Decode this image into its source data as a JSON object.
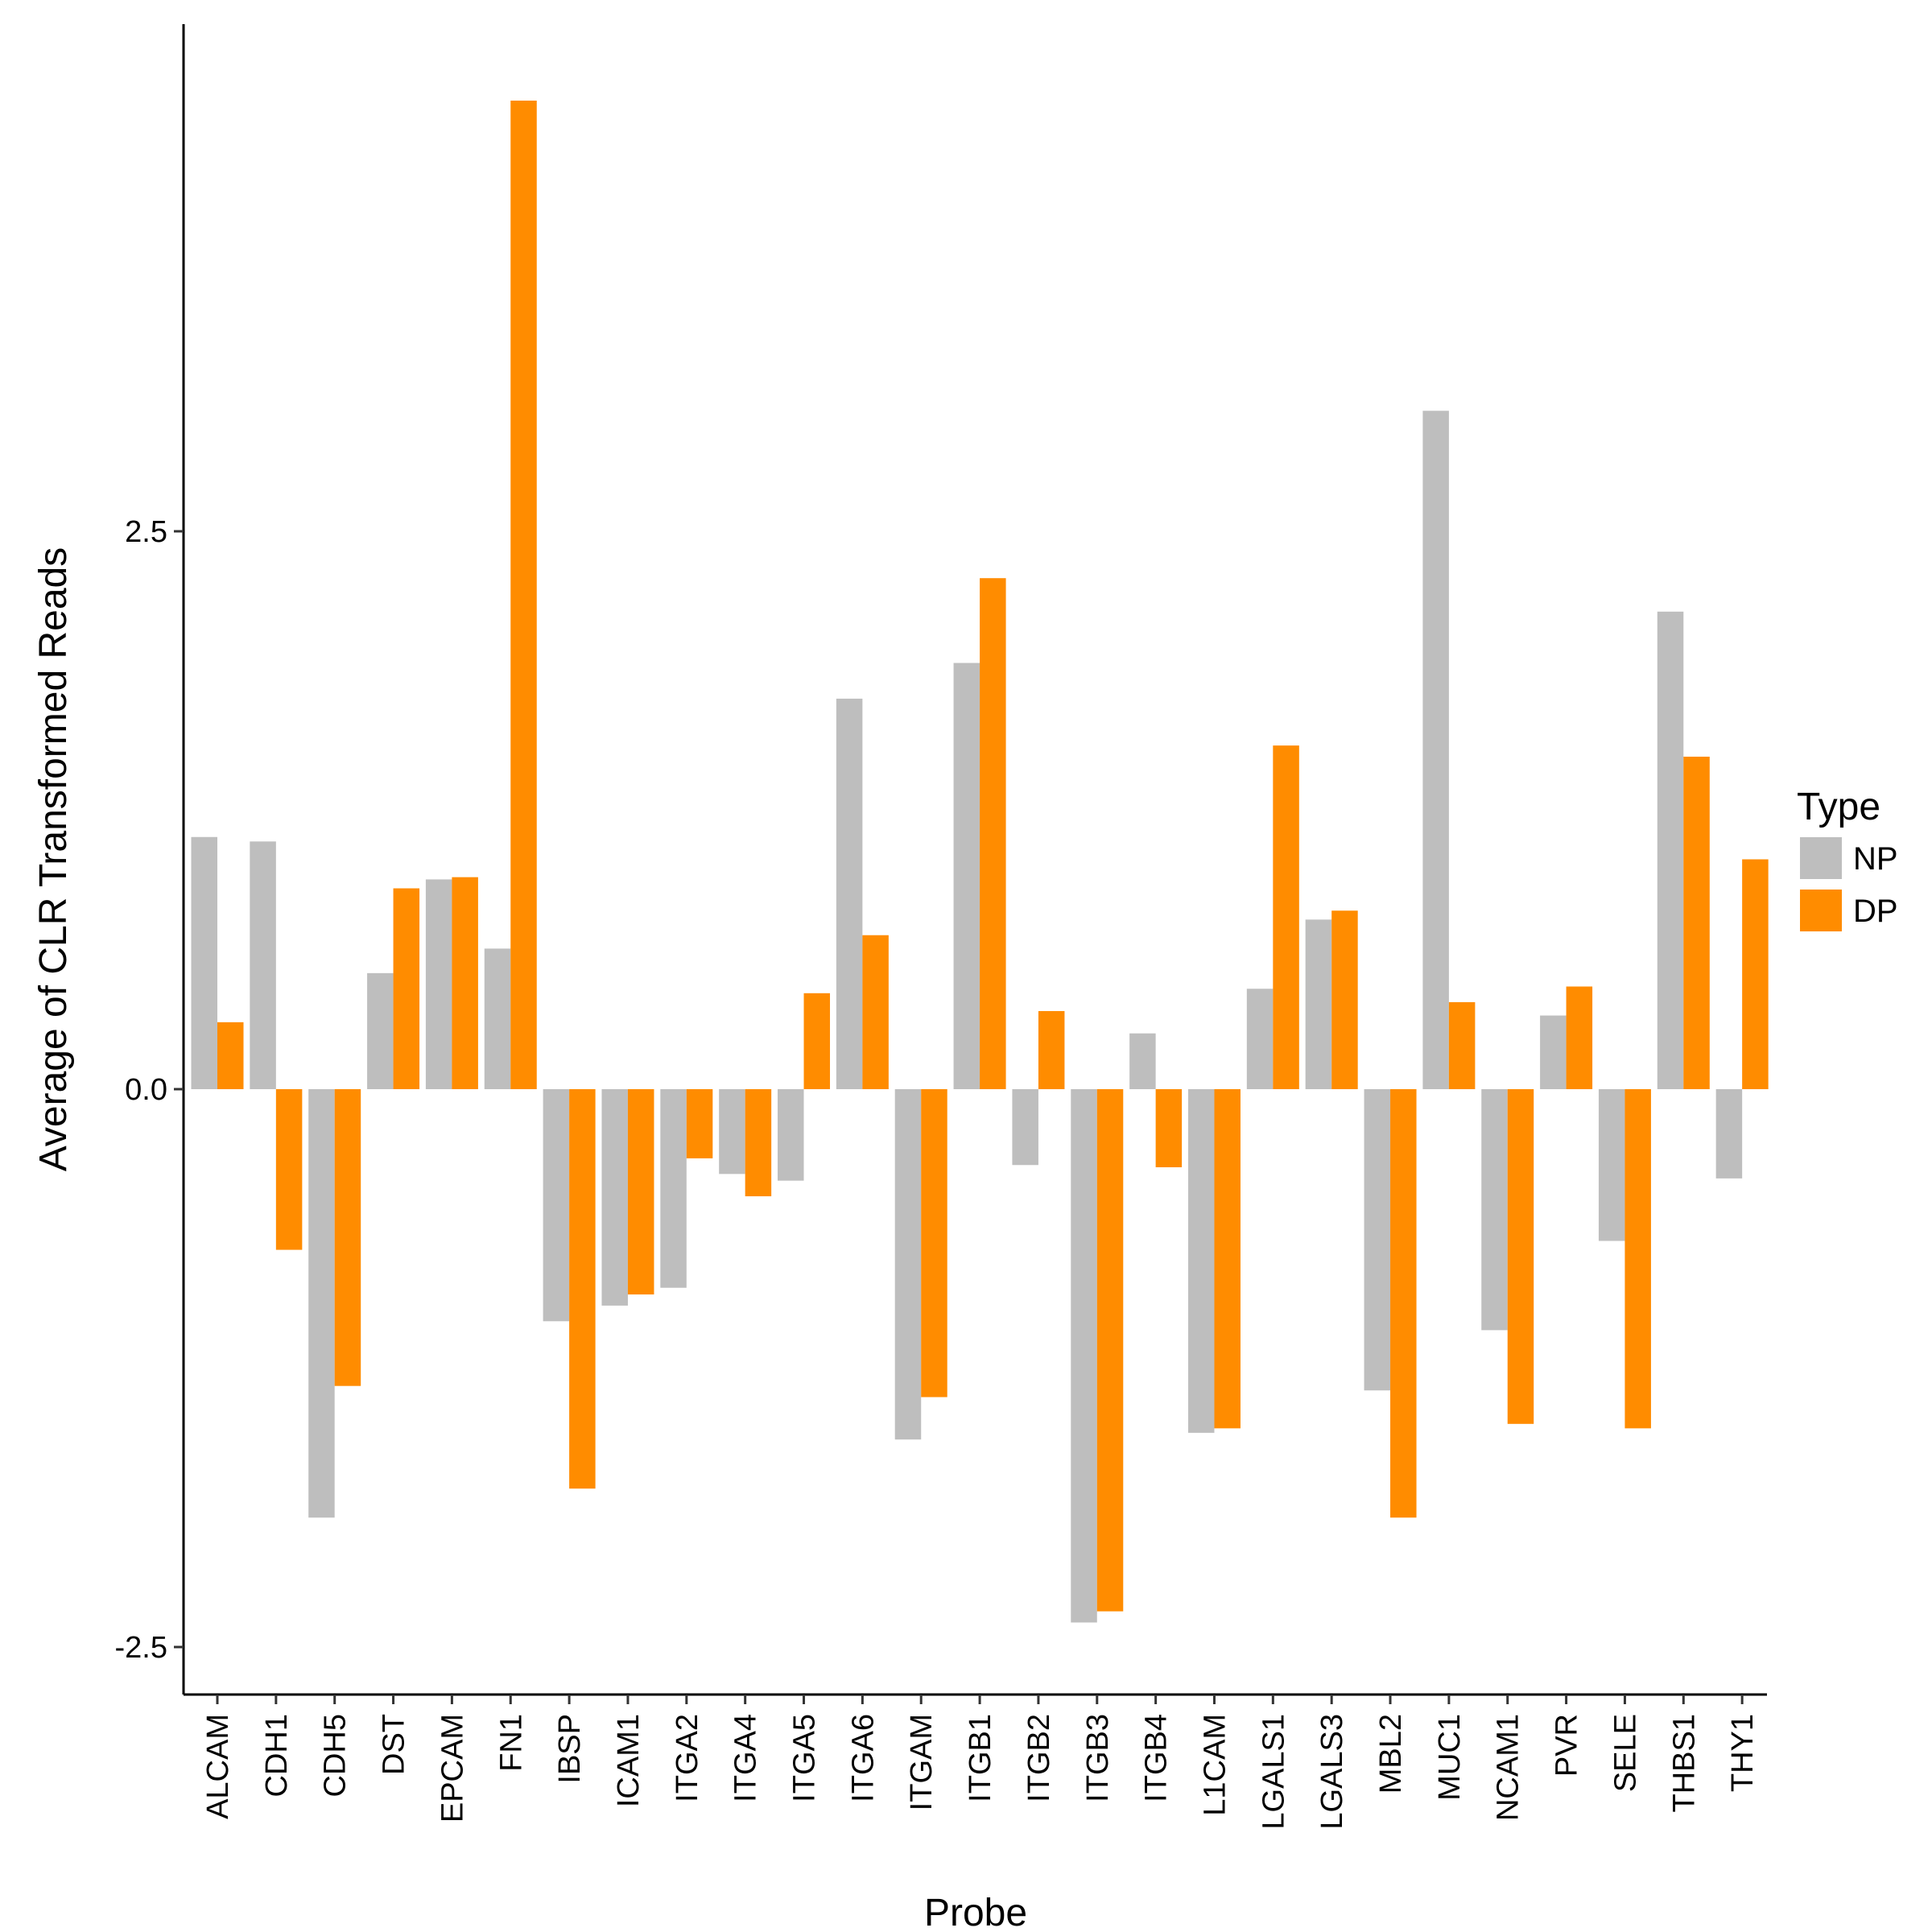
{
  "chart_data": {
    "type": "bar",
    "xlabel": "Probe",
    "ylabel": "Average of CLR Transformed Reads",
    "ylim": [
      -2.7,
      4.75
    ],
    "yticks": [
      -2.5,
      0.0,
      2.5
    ],
    "ytick_labels": [
      "-2.5",
      "0.0",
      "2.5"
    ],
    "grid": false,
    "legend": {
      "title": "Type",
      "position": "right"
    },
    "categories": [
      "ALCAM",
      "CDH1",
      "CDH5",
      "DST",
      "EPCAM",
      "FN1",
      "IBSP",
      "ICAM1",
      "ITGA2",
      "ITGA4",
      "ITGA5",
      "ITGA6",
      "ITGAM",
      "ITGB1",
      "ITGB2",
      "ITGB3",
      "ITGB4",
      "L1CAM",
      "LGALS1",
      "LGALS3",
      "MBL2",
      "MUC1",
      "NCAM1",
      "PVR",
      "SELE",
      "THBS1",
      "THY1"
    ],
    "series": [
      {
        "name": "NP",
        "color": "#bebebe",
        "values": [
          1.13,
          1.11,
          -1.92,
          0.52,
          0.94,
          0.63,
          -1.04,
          -0.97,
          -0.89,
          -0.38,
          -0.41,
          1.75,
          -1.57,
          1.91,
          -0.34,
          -2.39,
          0.25,
          -1.54,
          0.45,
          0.76,
          -1.35,
          3.04,
          -1.08,
          0.33,
          -0.68,
          2.14,
          -0.4
        ]
      },
      {
        "name": "DP",
        "color": "#ff8c00",
        "values": [
          0.3,
          -0.72,
          -1.33,
          0.9,
          0.95,
          4.43,
          -1.79,
          -0.92,
          -0.31,
          -0.48,
          0.43,
          0.69,
          -1.38,
          2.29,
          0.35,
          -2.34,
          -0.35,
          -1.52,
          1.54,
          0.8,
          -1.92,
          0.39,
          -1.5,
          0.46,
          -1.52,
          1.49,
          1.03
        ]
      }
    ]
  }
}
